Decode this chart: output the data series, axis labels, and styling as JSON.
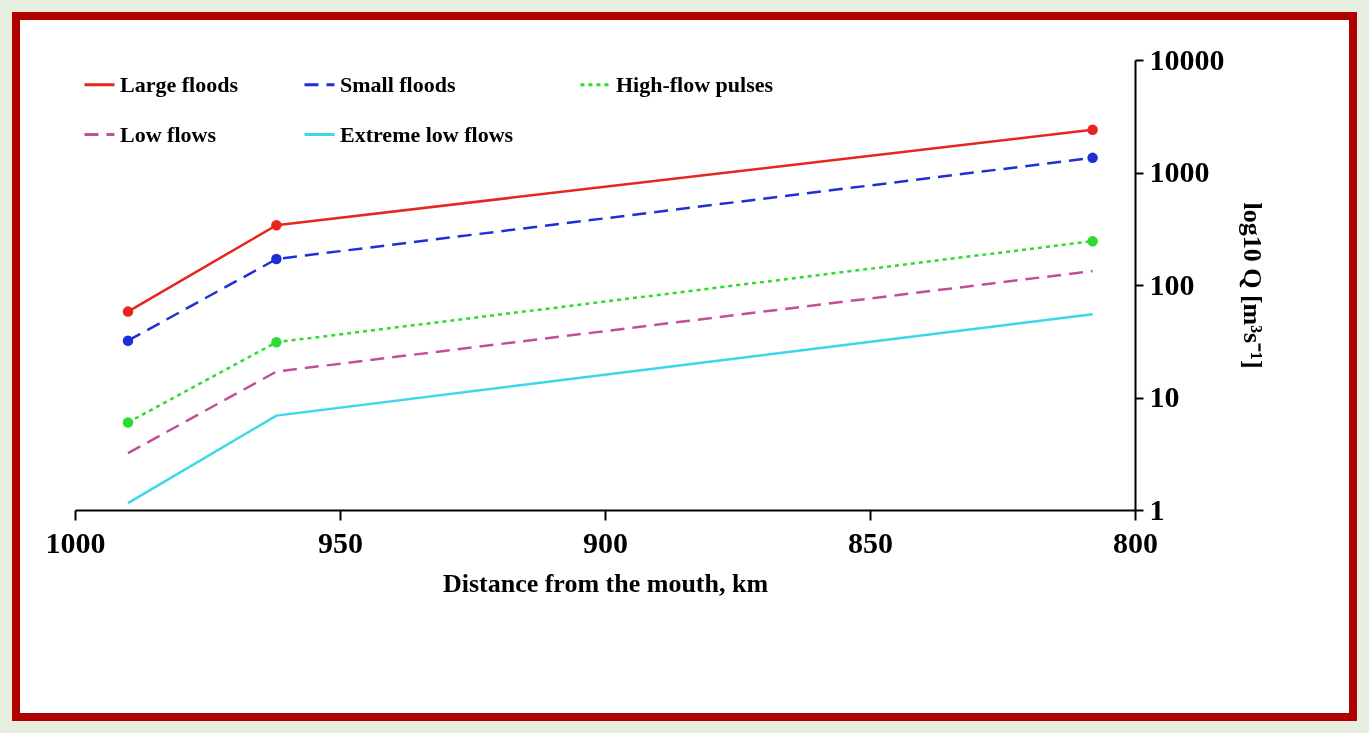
{
  "chart_data": {
    "type": "line",
    "xlabel": "Distance from the mouth, km",
    "ylabel": "log10 Q [m³s⁻¹]",
    "xlim": [
      1000,
      800
    ],
    "xticks": [
      {
        "value": 1000,
        "label": "1000"
      },
      950,
      900,
      850,
      800
    ],
    "ylim": [
      1,
      10000
    ],
    "yticks": [
      1,
      10,
      100,
      1000,
      10000
    ],
    "log": "y",
    "grid": false,
    "legend": "top left",
    "x": [
      990,
      962,
      808
    ],
    "series": [
      {
        "name": "Large floods",
        "color": "#e8251f",
        "values": [
          58,
          340,
          2400
        ],
        "marker": "circle",
        "line_style": "solid"
      },
      {
        "name": "Small floods",
        "color": "#1f2fd6",
        "values": [
          32,
          170,
          1350
        ],
        "marker": "circle",
        "line_style": "dashed"
      },
      {
        "name": "High-flow pulses",
        "color": "#2ddc2d",
        "values": [
          6,
          31,
          245
        ],
        "marker": "circle",
        "line_style": "dotted"
      },
      {
        "name": "Low flows",
        "color": "#c0509a",
        "values": [
          3.2,
          17,
          133
        ],
        "marker": "none",
        "line_style": "dashed"
      },
      {
        "name": "Extreme low flows",
        "color": "#3ad8e8",
        "values": [
          1.15,
          6.9,
          55
        ],
        "marker": "none",
        "line_style": "solid"
      }
    ]
  }
}
